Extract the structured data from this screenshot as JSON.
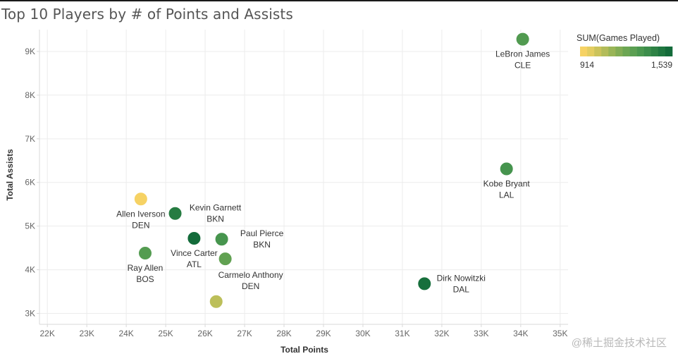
{
  "chart_data": {
    "type": "scatter",
    "title": "Top 10 Players by # of Points and Assists",
    "xlabel": "Total Points",
    "ylabel": "Total Assists",
    "xlim": [
      21800,
      35200
    ],
    "ylim": [
      2750,
      9500
    ],
    "x_ticks": [
      22000,
      23000,
      24000,
      25000,
      26000,
      27000,
      28000,
      29000,
      30000,
      31000,
      32000,
      33000,
      34000,
      35000
    ],
    "x_tick_labels": [
      "22K",
      "23K",
      "24K",
      "25K",
      "26K",
      "27K",
      "28K",
      "29K",
      "30K",
      "31K",
      "32K",
      "33K",
      "34K",
      "35K"
    ],
    "y_ticks": [
      3000,
      4000,
      5000,
      6000,
      7000,
      8000,
      9000
    ],
    "y_tick_labels": [
      "3K",
      "4K",
      "5K",
      "6K",
      "7K",
      "8K",
      "9K"
    ],
    "grid": true,
    "color_legend": {
      "title": "SUM(Games Played)",
      "min_label": "914",
      "max_label": "1,539",
      "min": 914,
      "max": 1539,
      "colors": [
        "#f6d264",
        "#e3cd61",
        "#cbc35b",
        "#b3bc5a",
        "#99b557",
        "#82ad55",
        "#6ca653",
        "#5b9f52",
        "#4a974f",
        "#3c8d4b",
        "#2e8245",
        "#1f7740",
        "#136b3a"
      ],
      "placement": "top-right"
    },
    "points": [
      {
        "name": "LeBron James",
        "team": "CLE",
        "x": 34050,
        "y": 9280,
        "games": 1310,
        "label_side": "below"
      },
      {
        "name": "Kobe Bryant",
        "team": "LAL",
        "x": 33640,
        "y": 6310,
        "games": 1346,
        "label_side": "below"
      },
      {
        "name": "Allen Iverson",
        "team": "DEN",
        "x": 24370,
        "y": 5620,
        "games": 914,
        "label_side": "below"
      },
      {
        "name": "Kevin Garnett",
        "team": "BKN",
        "x": 25240,
        "y": 5290,
        "games": 1462,
        "label_side": "above-right"
      },
      {
        "name": "Paul Pierce",
        "team": "BKN",
        "x": 26420,
        "y": 4700,
        "games": 1343,
        "label_side": "above-right"
      },
      {
        "name": "Vince Carter",
        "team": "ATL",
        "x": 25720,
        "y": 4720,
        "games": 1539,
        "label_side": "below"
      },
      {
        "name": "Ray Allen",
        "team": "BOS",
        "x": 24480,
        "y": 4380,
        "games": 1300,
        "label_side": "below"
      },
      {
        "name": "Carmelo Anthony",
        "team": "DEN",
        "x": 26510,
        "y": 4250,
        "games": 1260,
        "label_side": "below-right"
      },
      {
        "name": "Dirk Nowitzki",
        "team": "DAL",
        "x": 31560,
        "y": 3680,
        "games": 1522,
        "label_side": "right"
      },
      {
        "name": "",
        "team": "",
        "x": 26280,
        "y": 3270,
        "games": 1050,
        "label_side": "none"
      }
    ]
  },
  "watermark": "@稀土掘金技术社区"
}
